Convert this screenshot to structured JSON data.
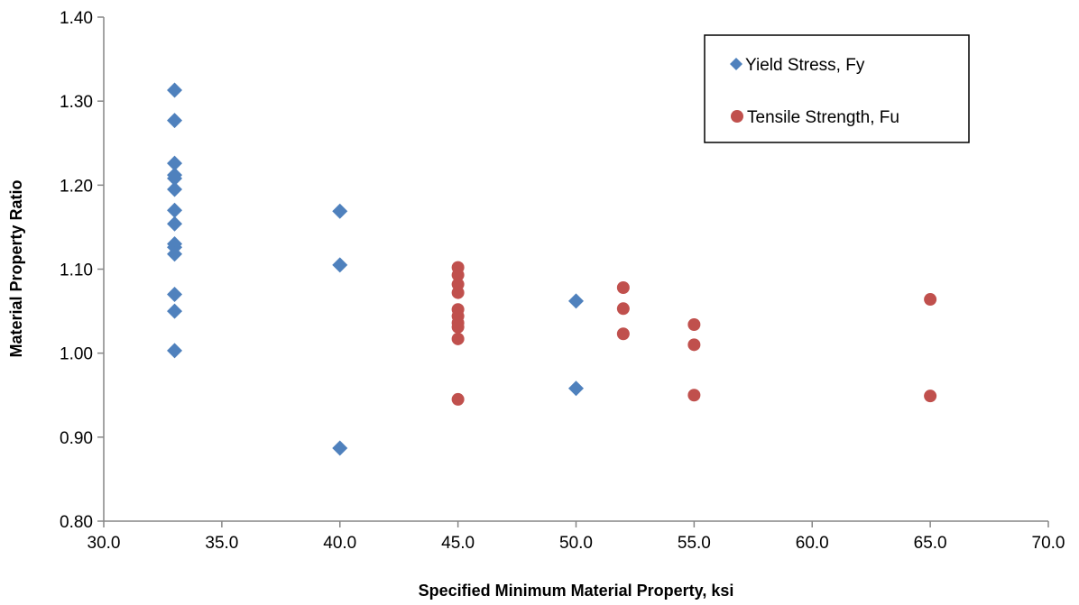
{
  "chart_data": {
    "type": "scatter",
    "title": "",
    "xlabel": "Specified Minimum Material Property, ksi",
    "ylabel": "Material Property Ratio",
    "xlim": [
      30.0,
      70.0
    ],
    "ylim": [
      0.8,
      1.4
    ],
    "x_ticks": [
      "30.0",
      "35.0",
      "40.0",
      "45.0",
      "50.0",
      "55.0",
      "60.0",
      "65.0",
      "70.0"
    ],
    "y_ticks": [
      "0.80",
      "0.90",
      "1.00",
      "1.10",
      "1.20",
      "1.30",
      "1.40"
    ],
    "grid": false,
    "legend_position": "top-right",
    "series": [
      {
        "name": "Yield Stress, Fy",
        "marker": "diamond",
        "color": "#4f81bd",
        "points": [
          [
            33,
            1.313
          ],
          [
            33,
            1.277
          ],
          [
            33,
            1.226
          ],
          [
            33,
            1.212
          ],
          [
            33,
            1.208
          ],
          [
            33,
            1.195
          ],
          [
            33,
            1.17
          ],
          [
            33,
            1.154
          ],
          [
            33,
            1.13
          ],
          [
            33,
            1.126
          ],
          [
            33,
            1.118
          ],
          [
            33,
            1.07
          ],
          [
            33,
            1.05
          ],
          [
            33,
            1.003
          ],
          [
            40,
            1.169
          ],
          [
            40,
            1.105
          ],
          [
            40,
            0.887
          ],
          [
            50,
            1.062
          ],
          [
            50,
            0.958
          ]
        ]
      },
      {
        "name": "Tensile Strength, Fu",
        "marker": "circle",
        "color": "#c0504d",
        "points": [
          [
            45,
            1.102
          ],
          [
            45,
            1.093
          ],
          [
            45,
            1.082
          ],
          [
            45,
            1.072
          ],
          [
            45,
            1.052
          ],
          [
            45,
            1.044
          ],
          [
            45,
            1.036
          ],
          [
            45,
            1.031
          ],
          [
            45,
            1.017
          ],
          [
            45,
            0.945
          ],
          [
            52,
            1.078
          ],
          [
            52,
            1.053
          ],
          [
            52,
            1.023
          ],
          [
            55,
            1.034
          ],
          [
            55,
            1.01
          ],
          [
            55,
            0.95
          ],
          [
            65,
            1.064
          ],
          [
            65,
            0.949
          ]
        ]
      }
    ]
  }
}
